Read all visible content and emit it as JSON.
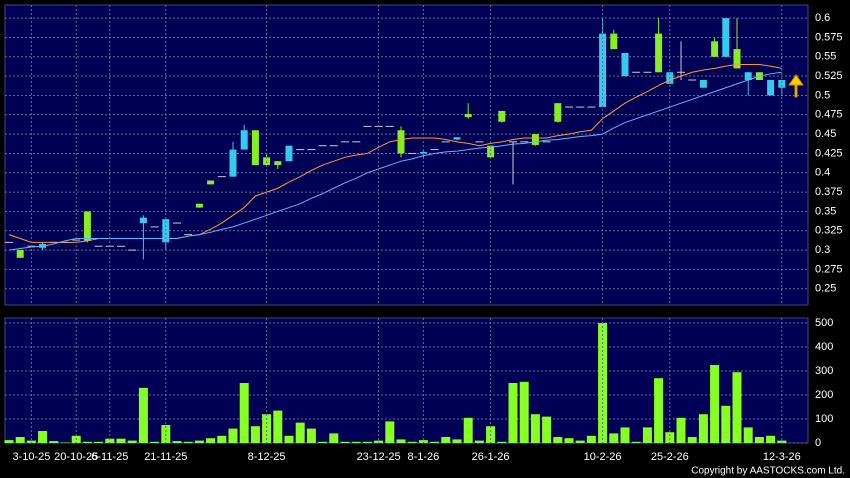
{
  "chart_data": [
    {
      "type": "candlestick",
      "open": [
        0.31,
        0.3,
        0.305,
        0.303,
        0.31,
        0.31,
        0.313,
        0.35,
        0.305,
        0.305,
        0.305,
        0.3,
        0.335,
        0.33,
        0.31,
        0.335,
        0.32,
        0.36,
        0.39,
        0.395,
        0.395,
        0.43,
        0.455,
        0.42,
        0.415,
        0.415,
        0.43,
        0.43,
        0.435,
        0.435,
        0.44,
        0.44,
        0.46,
        0.46,
        0.46,
        0.455,
        0.425,
        0.425,
        0.43,
        0.44,
        0.443,
        0.476,
        0.44,
        0.435,
        0.48,
        0.44,
        0.44,
        0.45,
        0.44,
        0.49,
        0.485,
        0.485,
        0.485,
        0.485,
        0.58,
        0.525,
        0.53,
        0.53,
        0.58,
        0.515,
        0.53,
        0.52,
        0.51,
        0.57,
        0.55,
        0.56,
        0.52,
        0.53,
        0.5,
        0.51
      ],
      "high": [
        0.31,
        0.3,
        0.305,
        0.31,
        0.31,
        0.31,
        0.313,
        0.35,
        0.305,
        0.305,
        0.305,
        0.3,
        0.345,
        0.33,
        0.34,
        0.335,
        0.32,
        0.36,
        0.39,
        0.395,
        0.44,
        0.462,
        0.455,
        0.425,
        0.415,
        0.435,
        0.43,
        0.43,
        0.435,
        0.435,
        0.44,
        0.44,
        0.46,
        0.46,
        0.46,
        0.46,
        0.425,
        0.428,
        0.43,
        0.44,
        0.446,
        0.49,
        0.44,
        0.435,
        0.48,
        0.44,
        0.44,
        0.45,
        0.44,
        0.49,
        0.485,
        0.485,
        0.485,
        0.6,
        0.585,
        0.555,
        0.53,
        0.53,
        0.6,
        0.53,
        0.57,
        0.52,
        0.52,
        0.575,
        0.6,
        0.6,
        0.53,
        0.53,
        0.52,
        0.52
      ],
      "low": [
        0.31,
        0.29,
        0.305,
        0.3,
        0.31,
        0.31,
        0.313,
        0.31,
        0.305,
        0.305,
        0.305,
        0.3,
        0.288,
        0.33,
        0.3,
        0.335,
        0.32,
        0.355,
        0.385,
        0.395,
        0.395,
        0.43,
        0.41,
        0.41,
        0.405,
        0.415,
        0.43,
        0.43,
        0.435,
        0.435,
        0.44,
        0.44,
        0.46,
        0.46,
        0.46,
        0.42,
        0.425,
        0.42,
        0.43,
        0.44,
        0.442,
        0.47,
        0.44,
        0.42,
        0.465,
        0.385,
        0.44,
        0.435,
        0.44,
        0.465,
        0.485,
        0.485,
        0.485,
        0.485,
        0.56,
        0.525,
        0.53,
        0.53,
        0.53,
        0.515,
        0.52,
        0.52,
        0.51,
        0.55,
        0.55,
        0.535,
        0.5,
        0.52,
        0.5,
        0.5
      ],
      "close": [
        0.31,
        0.29,
        0.305,
        0.308,
        0.31,
        0.31,
        0.313,
        0.312,
        0.305,
        0.305,
        0.305,
        0.3,
        0.342,
        0.33,
        0.34,
        0.335,
        0.32,
        0.355,
        0.385,
        0.395,
        0.43,
        0.455,
        0.41,
        0.41,
        0.41,
        0.435,
        0.43,
        0.43,
        0.435,
        0.435,
        0.44,
        0.44,
        0.46,
        0.46,
        0.46,
        0.425,
        0.425,
        0.427,
        0.43,
        0.44,
        0.446,
        0.472,
        0.44,
        0.42,
        0.466,
        0.44,
        0.44,
        0.436,
        0.44,
        0.466,
        0.485,
        0.485,
        0.485,
        0.58,
        0.56,
        0.555,
        0.53,
        0.53,
        0.53,
        0.53,
        0.53,
        0.52,
        0.52,
        0.55,
        0.6,
        0.535,
        0.53,
        0.52,
        0.52,
        0.52
      ],
      "up_color": "#33ccee",
      "down_color": "#88ee22",
      "flat_color": "#cccccc",
      "series": [
        {
          "color": "#ff9933",
          "values": [
            0.32,
            0.315,
            0.31,
            0.31,
            0.31,
            0.31,
            0.31,
            0.312,
            0.315,
            0.315,
            0.315,
            0.315,
            0.315,
            0.315,
            0.315,
            0.315,
            0.318,
            0.32,
            0.327,
            0.335,
            0.345,
            0.355,
            0.37,
            0.375,
            0.38,
            0.388,
            0.395,
            0.403,
            0.41,
            0.415,
            0.42,
            0.423,
            0.425,
            0.433,
            0.44,
            0.443,
            0.445,
            0.445,
            0.445,
            0.443,
            0.44,
            0.438,
            0.435,
            0.438,
            0.44,
            0.443,
            0.445,
            0.445,
            0.445,
            0.448,
            0.45,
            0.453,
            0.455,
            0.47,
            0.48,
            0.49,
            0.498,
            0.505,
            0.513,
            0.52,
            0.525,
            0.53,
            0.533,
            0.535,
            0.538,
            0.54,
            0.54,
            0.54,
            0.538,
            0.535
          ]
        },
        {
          "color": "#55bbff",
          "values": [
            0.3,
            0.302,
            0.304,
            0.305,
            0.308,
            0.312,
            0.315,
            0.315,
            0.315,
            0.315,
            0.315,
            0.315,
            0.315,
            0.315,
            0.315,
            0.315,
            0.318,
            0.32,
            0.323,
            0.327,
            0.33,
            0.335,
            0.34,
            0.345,
            0.35,
            0.355,
            0.36,
            0.367,
            0.373,
            0.38,
            0.387,
            0.393,
            0.4,
            0.405,
            0.41,
            0.415,
            0.418,
            0.422,
            0.425,
            0.427,
            0.428,
            0.43,
            0.432,
            0.433,
            0.435,
            0.437,
            0.438,
            0.44,
            0.442,
            0.443,
            0.445,
            0.447,
            0.448,
            0.45,
            0.458,
            0.465,
            0.47,
            0.475,
            0.48,
            0.485,
            0.49,
            0.495,
            0.5,
            0.505,
            0.51,
            0.515,
            0.52,
            0.525,
            0.528,
            0.53
          ]
        }
      ],
      "ylim": [
        0.229,
        0.617
      ],
      "yticks": [
        0.6,
        0.575,
        0.55,
        0.525,
        0.5,
        0.475,
        0.45,
        0.425,
        0.4,
        0.375,
        0.35,
        0.325,
        0.3,
        0.275,
        0.25
      ],
      "grid": true
    },
    {
      "type": "bar",
      "categories": [
        null,
        null,
        "3-10-25",
        null,
        null,
        null,
        "20-10-25",
        null,
        null,
        "6-11-25",
        null,
        null,
        null,
        null,
        "21-11-25",
        null,
        null,
        null,
        null,
        null,
        null,
        null,
        null,
        "8-12-25",
        null,
        null,
        null,
        null,
        null,
        null,
        null,
        null,
        null,
        "23-12-25",
        null,
        null,
        null,
        "8-1-26",
        null,
        null,
        null,
        null,
        null,
        "26-1-26",
        null,
        null,
        null,
        null,
        null,
        null,
        null,
        null,
        null,
        "10-2-26",
        null,
        null,
        null,
        null,
        null,
        "25-2-26",
        null,
        null,
        null,
        null,
        null,
        null,
        null,
        null,
        null,
        "12-3-26"
      ],
      "values": [
        12,
        25,
        10,
        50,
        8,
        2,
        30,
        5,
        5,
        18,
        18,
        10,
        230,
        5,
        75,
        8,
        5,
        10,
        20,
        30,
        60,
        250,
        70,
        120,
        135,
        30,
        85,
        60,
        5,
        40,
        5,
        5,
        5,
        10,
        90,
        15,
        5,
        12,
        5,
        25,
        15,
        105,
        10,
        70,
        5,
        250,
        255,
        120,
        110,
        25,
        20,
        10,
        30,
        500,
        40,
        65,
        5,
        65,
        270,
        45,
        105,
        25,
        120,
        325,
        155,
        295,
        65,
        25,
        30,
        10
      ],
      "color": "#88ff22",
      "ylim": [
        0,
        521
      ],
      "yticks": [
        0,
        100,
        200,
        300,
        400,
        500
      ],
      "grid": true
    }
  ],
  "footer": "Copyright by AASTOCKS.com Ltd."
}
